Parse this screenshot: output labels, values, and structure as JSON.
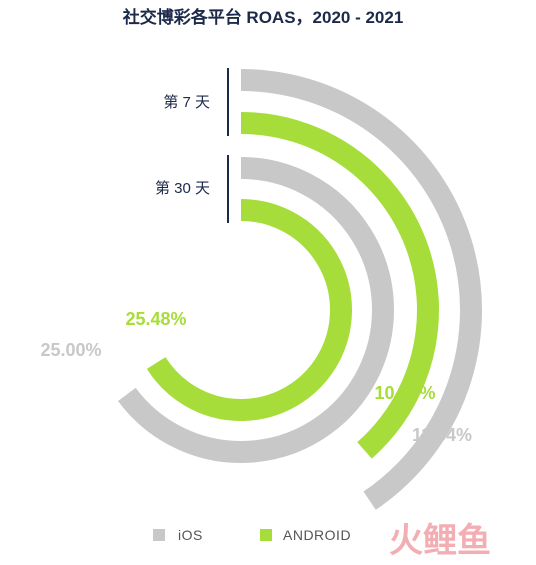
{
  "chart_data": {
    "type": "radial-bar",
    "title": "社交博彩各平台 ROAS，2020 - 2021",
    "ring_groups": [
      "第 7 天",
      "第 30 天"
    ],
    "series": [
      {
        "name": "iOS",
        "color": "#c8c8c8",
        "values": [
          11.34,
          25.0
        ]
      },
      {
        "name": "ANDROID",
        "color": "#a6dd3a",
        "values": [
          10.77,
          25.48
        ]
      }
    ],
    "value_labels": {
      "day7_ios": "11.34%",
      "day7_android": "10.77%",
      "day30_ios": "25.00%",
      "day30_android": "25.48%"
    },
    "legend": [
      {
        "label": "iOS",
        "color": "#c8c8c8"
      },
      {
        "label": "ANDROID",
        "color": "#a6dd3a"
      }
    ]
  },
  "watermark": "火鲤鱼"
}
